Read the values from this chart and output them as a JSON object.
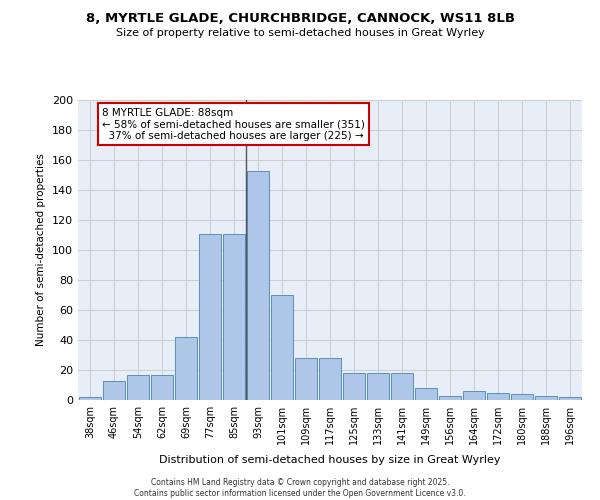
{
  "title1": "8, MYRTLE GLADE, CHURCHBRIDGE, CANNOCK, WS11 8LB",
  "title2": "Size of property relative to semi-detached houses in Great Wyrley",
  "xlabel": "Distribution of semi-detached houses by size in Great Wyrley",
  "ylabel": "Number of semi-detached properties",
  "categories": [
    "38sqm",
    "46sqm",
    "54sqm",
    "62sqm",
    "69sqm",
    "77sqm",
    "85sqm",
    "93sqm",
    "101sqm",
    "109sqm",
    "117sqm",
    "125sqm",
    "133sqm",
    "141sqm",
    "149sqm",
    "156sqm",
    "164sqm",
    "172sqm",
    "180sqm",
    "188sqm",
    "196sqm"
  ],
  "bar_heights": [
    2,
    13,
    17,
    17,
    42,
    111,
    111,
    153,
    70,
    28,
    28,
    18,
    18,
    18,
    8,
    3,
    6,
    5,
    4,
    3,
    2
  ],
  "property_line_x": 6.5,
  "annotation_text": "8 MYRTLE GLADE: 88sqm\n← 58% of semi-detached houses are smaller (351)\n  37% of semi-detached houses are larger (225) →",
  "bar_color": "#aec6e8",
  "bar_edge_color": "#5a8fc0",
  "property_line_color": "#555555",
  "annotation_border_color": "#cc0000",
  "background_color": "#e8eef8",
  "grid_color": "#cccccc",
  "footer_text": "Contains HM Land Registry data © Crown copyright and database right 2025.\nContains public sector information licensed under the Open Government Licence v3.0.",
  "ylim": [
    0,
    200
  ],
  "yticks": [
    0,
    20,
    40,
    60,
    80,
    100,
    120,
    140,
    160,
    180,
    200
  ]
}
